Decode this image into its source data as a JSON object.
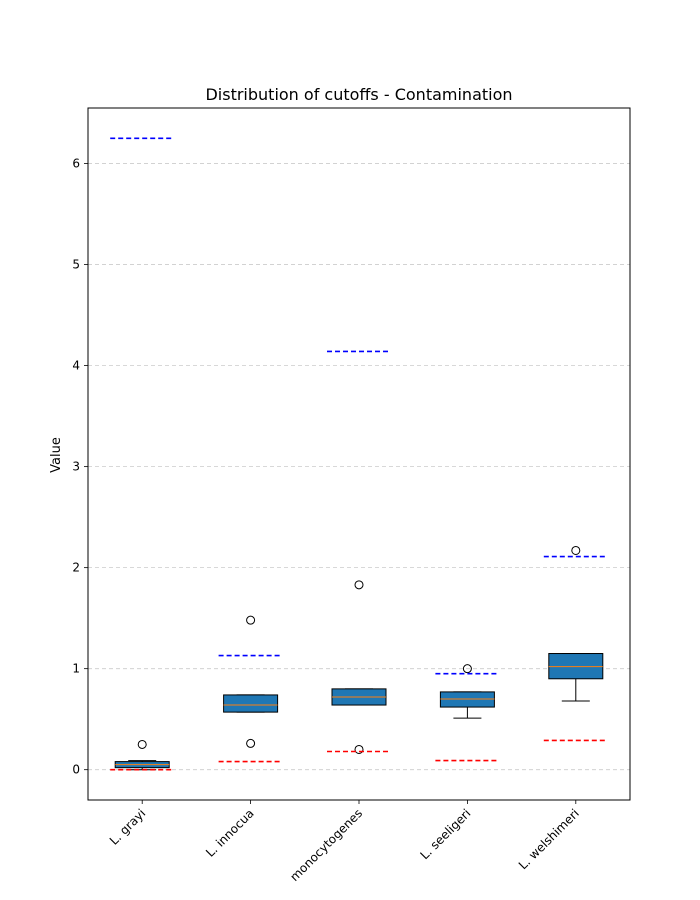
{
  "chart_data": {
    "type": "box",
    "title": "Distribution of cutoffs - Contamination",
    "xlabel": "",
    "ylabel": "Value",
    "ylim": [
      -0.3,
      6.55
    ],
    "yticks": [
      0,
      1,
      2,
      3,
      4,
      5,
      6
    ],
    "grid": "y-dashed",
    "categories": [
      "L. grayi",
      "L. innocua",
      "monocytogenes",
      "L. seeligeri",
      "L. welshimeri"
    ],
    "boxes": [
      {
        "whislo": 0.0,
        "q1": 0.02,
        "med": 0.05,
        "q3": 0.08,
        "whishi": 0.09,
        "fliers": [
          0.25
        ]
      },
      {
        "whislo": 0.57,
        "q1": 0.57,
        "med": 0.64,
        "q3": 0.74,
        "whishi": 0.74,
        "fliers": [
          1.48,
          0.26
        ]
      },
      {
        "whislo": 0.64,
        "q1": 0.64,
        "med": 0.72,
        "q3": 0.8,
        "whishi": 0.8,
        "fliers": [
          1.83,
          0.2
        ]
      },
      {
        "whislo": 0.51,
        "q1": 0.62,
        "med": 0.7,
        "q3": 0.77,
        "whishi": 0.77,
        "fliers": [
          1.0
        ]
      },
      {
        "whislo": 0.68,
        "q1": 0.9,
        "med": 1.02,
        "q3": 1.15,
        "whishi": 1.15,
        "fliers": [
          2.17
        ]
      }
    ],
    "upper_cutoffs": [
      6.25,
      1.13,
      4.14,
      0.95,
      2.11
    ],
    "lower_cutoffs": [
      0.0,
      0.08,
      0.18,
      0.09,
      0.29
    ],
    "colors": {
      "box_fill": "#1f77b4",
      "median": "#ff7f0e",
      "upper_cutoff": "#0000ff",
      "lower_cutoff": "#ff0000",
      "grid": "#cccccc"
    }
  }
}
